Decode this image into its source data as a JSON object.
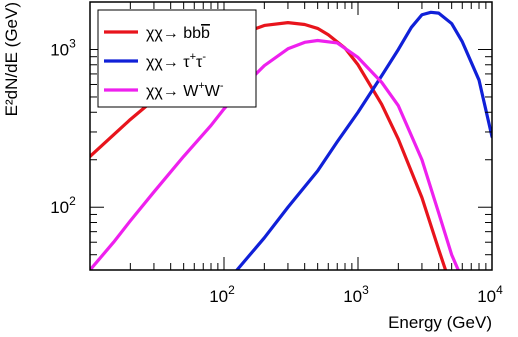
{
  "chart_data": {
    "type": "line",
    "xlabel": "Energy (GeV)",
    "ylabel": "E²dN/dE (GeV)",
    "xscale": "log",
    "yscale": "log",
    "xlim": [
      10,
      10000
    ],
    "ylim": [
      40,
      2000
    ],
    "grid": false,
    "legend_position": "top-left",
    "x_ticks": [
      {
        "value": 100,
        "base": "10",
        "exp": "2"
      },
      {
        "value": 1000,
        "base": "10",
        "exp": "3"
      },
      {
        "value": 10000,
        "base": "10",
        "exp": "4"
      }
    ],
    "y_ticks": [
      {
        "value": 100,
        "base": "10",
        "exp": "2"
      },
      {
        "value": 1000,
        "base": "10",
        "exp": "3"
      }
    ],
    "series": [
      {
        "name": "χχ→ bb̄",
        "legend": {
          "prefix": "χχ→ ",
          "main": "bb",
          "sup1": "",
          "mid": "",
          "sup2": "",
          "overline": "b"
        },
        "color": "#e8141c",
        "x": [
          10,
          20,
          40,
          60,
          100,
          150,
          200,
          300,
          400,
          500,
          600,
          800,
          1000,
          1500,
          2000,
          3000,
          4000,
          4500
        ],
        "y": [
          210,
          360,
          590,
          780,
          1070,
          1300,
          1420,
          1480,
          1440,
          1360,
          1240,
          1020,
          800,
          450,
          270,
          115,
          54,
          40
        ]
      },
      {
        "name": "χχ→ τ⁺τ⁻",
        "legend": {
          "prefix": "χχ→ ",
          "main": "τ",
          "sup1": "+",
          "mid": "τ",
          "sup2": "-",
          "overline": ""
        },
        "color": "#1020d8",
        "x": [
          125,
          150,
          200,
          300,
          500,
          700,
          1000,
          1500,
          2000,
          2500,
          3000,
          3500,
          4000,
          5000,
          6000,
          8000,
          10000
        ],
        "y": [
          40,
          48,
          64,
          100,
          170,
          260,
          400,
          680,
          1000,
          1380,
          1660,
          1720,
          1700,
          1460,
          1120,
          640,
          280
        ]
      },
      {
        "name": "χχ→ W⁺W⁻",
        "legend": {
          "prefix": "χχ→ ",
          "main": "W",
          "sup1": "+",
          "mid": "W",
          "sup2": "-",
          "overline": ""
        },
        "color": "#ee20ee",
        "x": [
          10,
          15,
          20,
          30,
          50,
          80,
          100,
          150,
          200,
          300,
          400,
          500,
          700,
          1000,
          1500,
          2000,
          3000,
          4000,
          5000,
          5600
        ],
        "y": [
          40,
          60,
          82,
          125,
          210,
          330,
          420,
          620,
          790,
          1010,
          1110,
          1140,
          1100,
          890,
          620,
          440,
          200,
          92,
          50,
          40
        ]
      }
    ]
  }
}
